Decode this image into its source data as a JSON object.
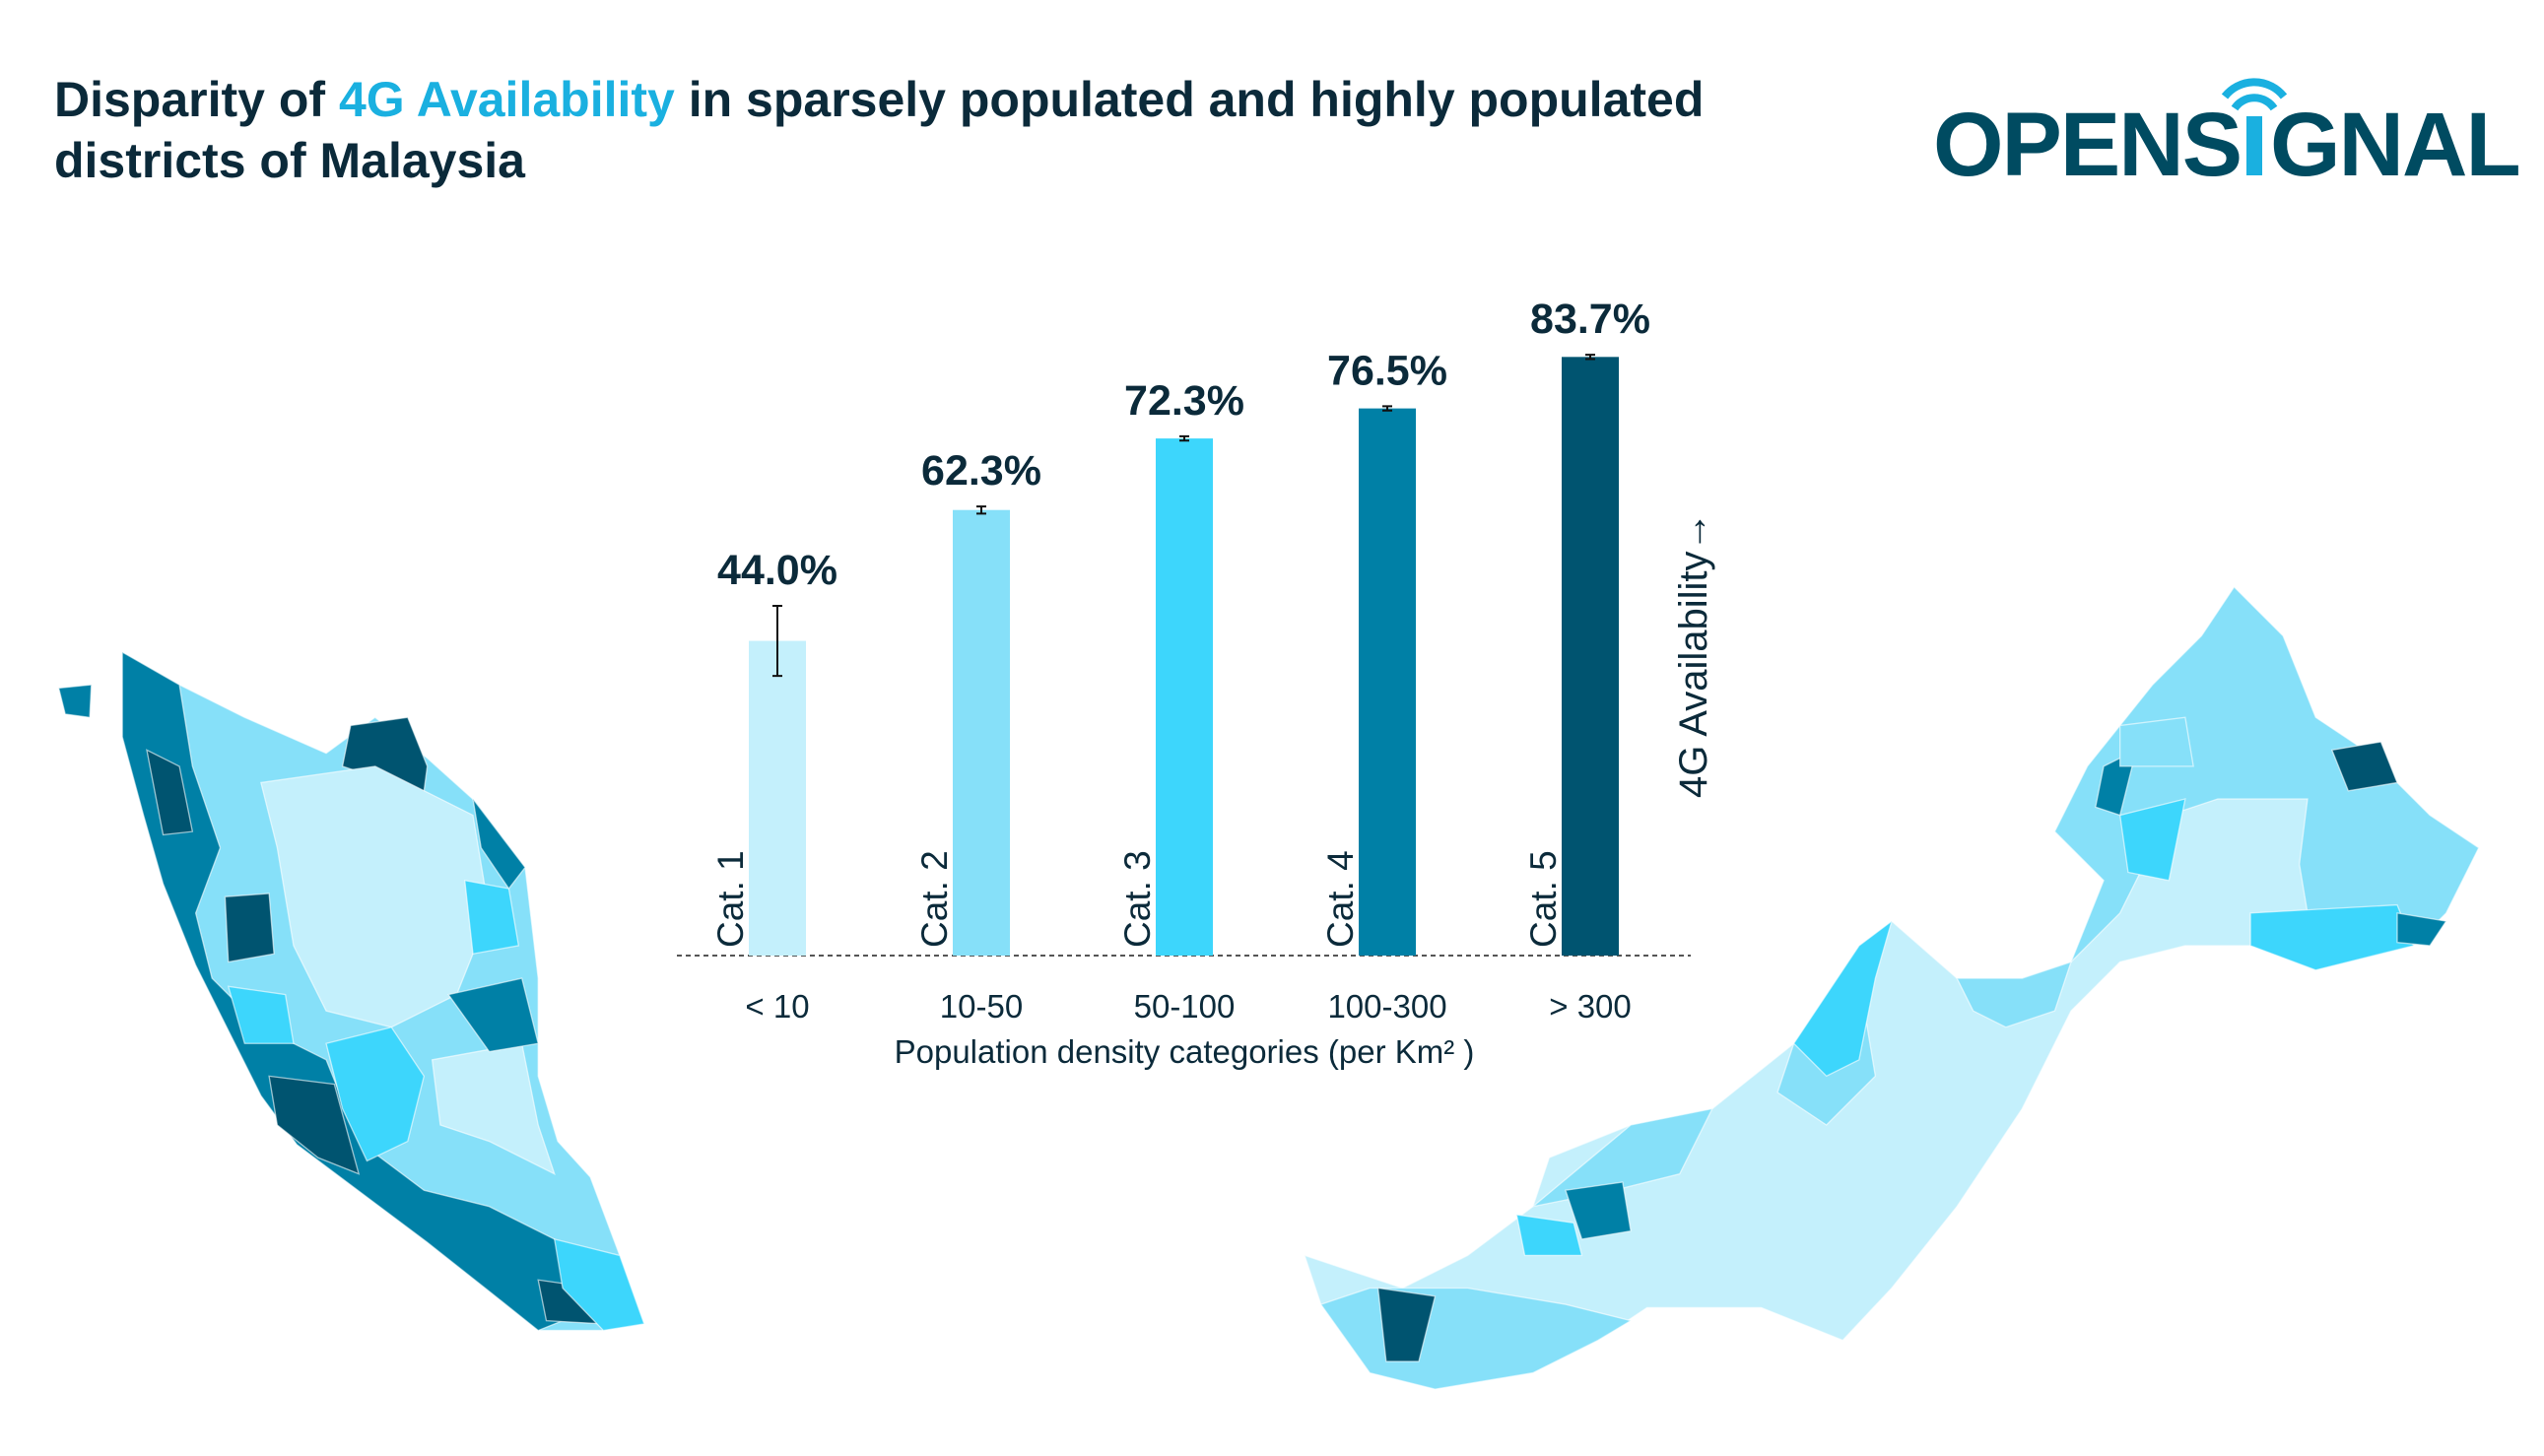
{
  "title": {
    "prefix": "Disparity of ",
    "highlight": "4G Availability",
    "suffix": " in sparsely populated and highly populated districts of Malaysia"
  },
  "logo": {
    "text": "OPENSIGNAL",
    "color": "#004b61",
    "accent": "#1ab0e0"
  },
  "chart_data": {
    "type": "bar",
    "title": "",
    "xlabel": "Population density categories (per Km² )",
    "ylabel": "4G Availability→",
    "categories": [
      "< 10",
      "10-50",
      "50-100",
      "100-300",
      "> 300"
    ],
    "category_labels": [
      "Cat. 1",
      "Cat. 2",
      "Cat. 3",
      "Cat. 4",
      "Cat. 5"
    ],
    "values": [
      44.0,
      62.3,
      72.3,
      76.5,
      83.7
    ],
    "value_labels": [
      "44.0%",
      "62.3%",
      "72.3%",
      "76.5%",
      "83.7%"
    ],
    "error": [
      4.9,
      0.5,
      0.3,
      0.3,
      0.3
    ],
    "colors": [
      "#c4f0fc",
      "#86e0f9",
      "#3dd6fc",
      "#0080a6",
      "#005470"
    ],
    "ylim": [
      0,
      100
    ],
    "grid": false,
    "baseline": "dashed"
  },
  "map_colors": [
    "#c4f0fc",
    "#86e0f9",
    "#3dd6fc",
    "#0080a6",
    "#005470"
  ]
}
